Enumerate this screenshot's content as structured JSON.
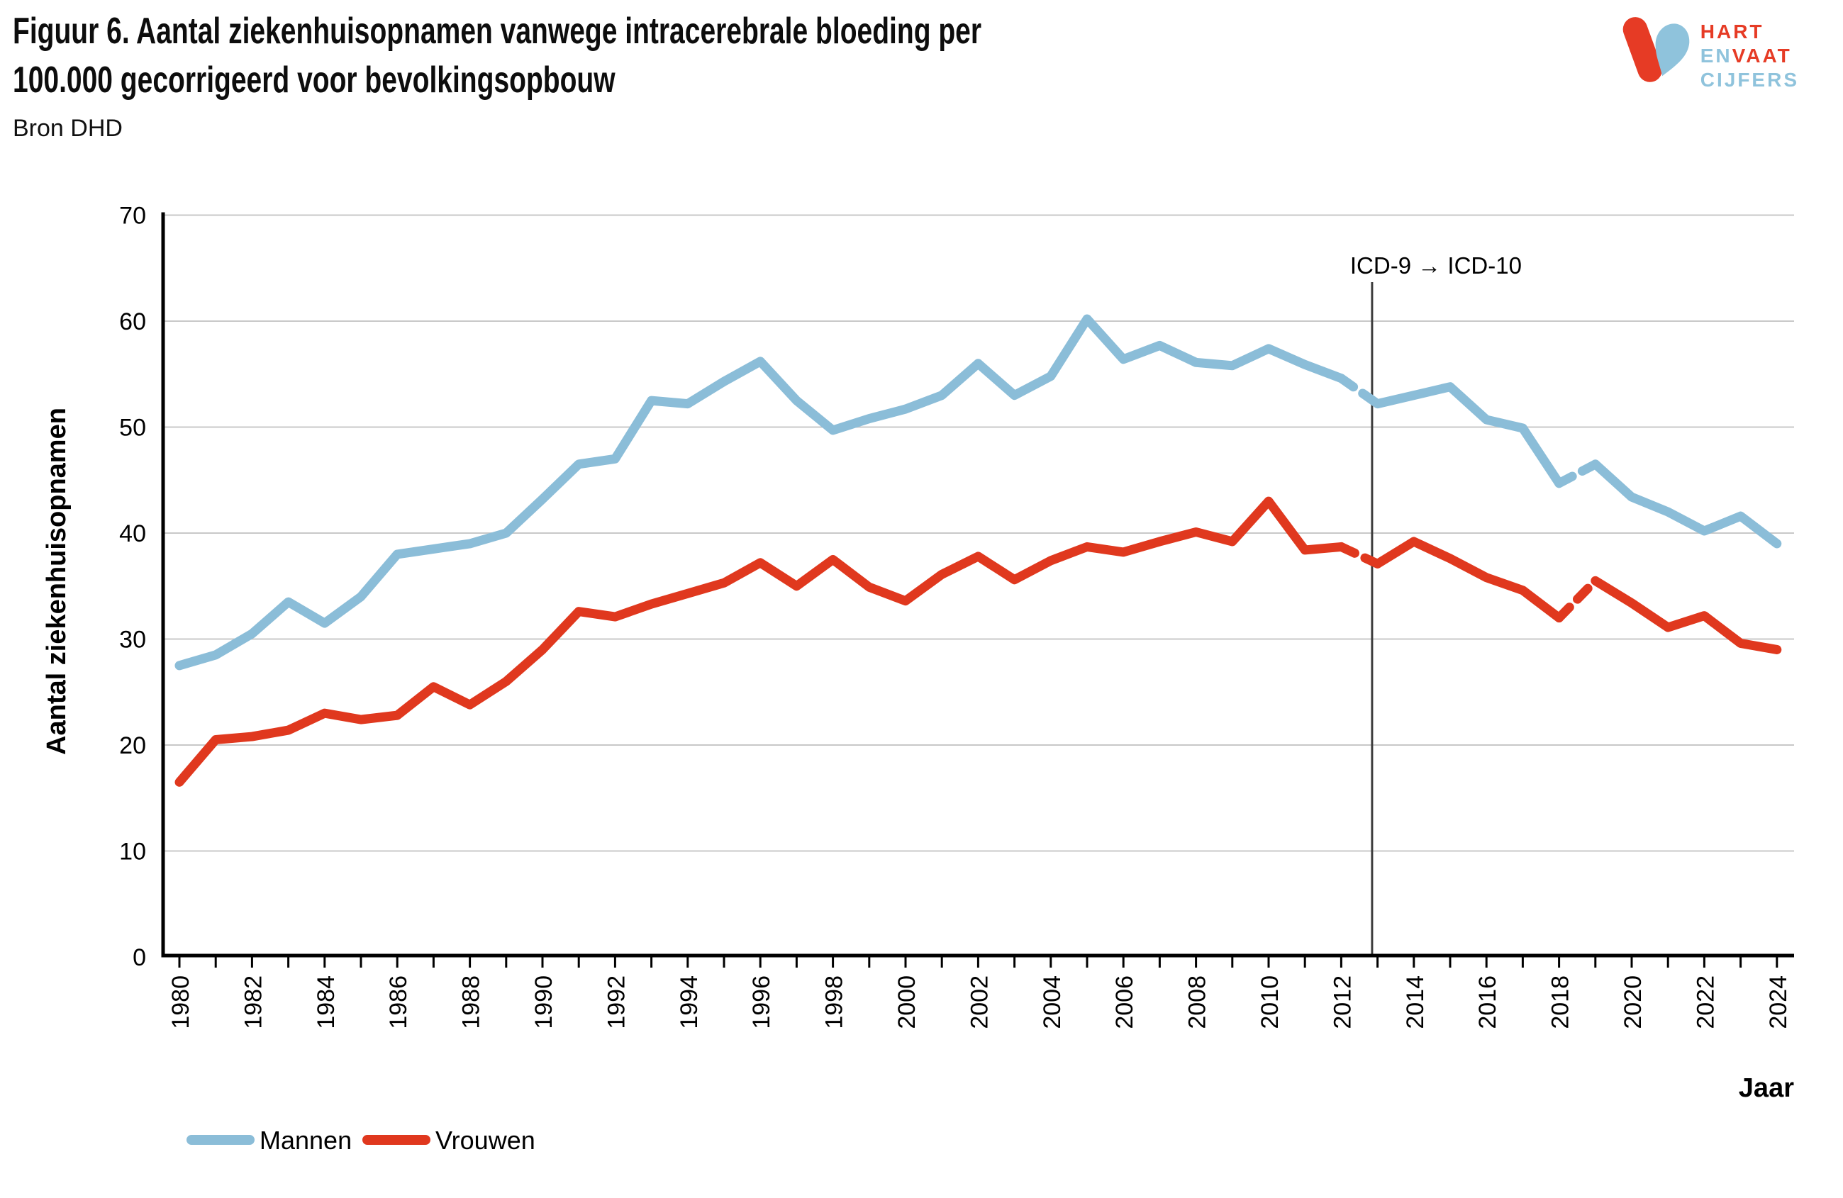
{
  "header": {
    "title": "Figuur 6. Aantal ziekenhuisopnamen vanwege intracerebrale bloeding per\n100.000 gecorrigeerd voor bevolkingsopbouw",
    "source": "Bron DHD"
  },
  "logo": {
    "word1": "HART",
    "word2a": "EN",
    "word2b": "VAAT",
    "word3": "CIJFERS",
    "red": "#e63b25",
    "blue": "#8fc3dc"
  },
  "chart_data": {
    "type": "line",
    "title": "Figuur 6. Aantal ziekenhuisopnamen vanwege intracerebrale bloeding per 100.000 gecorrigeerd voor bevolkingsopbouw",
    "xlabel": "Jaar",
    "ylabel": "Aantal ziekenhuisopnamen",
    "ylim": [
      0,
      70
    ],
    "yticks": [
      0,
      10,
      20,
      30,
      40,
      50,
      60,
      70
    ],
    "xtick_step": 2,
    "grid": true,
    "legend_position": "bottom-left",
    "grid_color": "#c8c8c8",
    "axis_color": "#000000",
    "annotation": {
      "label": "ICD-9 → ICD-10",
      "x": 2012.85,
      "line_color": "#3d3d3d"
    },
    "dashed_segments": [
      [
        2012,
        2013
      ],
      [
        2018,
        2019
      ]
    ],
    "x": [
      1980,
      1981,
      1982,
      1983,
      1984,
      1985,
      1986,
      1987,
      1988,
      1989,
      1990,
      1991,
      1992,
      1993,
      1994,
      1995,
      1996,
      1997,
      1998,
      1999,
      2000,
      2001,
      2002,
      2003,
      2004,
      2005,
      2006,
      2007,
      2008,
      2009,
      2010,
      2011,
      2012,
      2013,
      2014,
      2015,
      2016,
      2017,
      2018,
      2019,
      2020,
      2021,
      2022,
      2023,
      2024
    ],
    "series": [
      {
        "name": "Mannen",
        "color": "#8bbdd8",
        "values": [
          27.5,
          28.5,
          30.5,
          33.5,
          31.5,
          34.0,
          38.0,
          38.5,
          39.0,
          40.0,
          43.2,
          46.5,
          47.0,
          52.5,
          52.2,
          54.3,
          56.2,
          52.5,
          49.7,
          50.8,
          51.7,
          53.0,
          56.0,
          53.0,
          54.8,
          60.2,
          56.4,
          57.7,
          56.1,
          55.8,
          57.4,
          55.9,
          54.6,
          52.2,
          53.0,
          53.8,
          50.7,
          49.9,
          44.7,
          46.5,
          43.4,
          42.0,
          40.2,
          41.6,
          39.0
        ]
      },
      {
        "name": "Vrouwen",
        "color": "#e0381e",
        "values": [
          16.5,
          20.5,
          20.8,
          21.4,
          23.0,
          22.4,
          22.8,
          25.5,
          23.8,
          26.0,
          29.0,
          32.6,
          32.1,
          33.3,
          34.3,
          35.3,
          37.2,
          35.0,
          37.5,
          34.9,
          33.6,
          36.1,
          37.8,
          35.6,
          37.4,
          38.7,
          38.2,
          39.2,
          40.1,
          39.2,
          43.0,
          38.4,
          38.7,
          37.1,
          39.2,
          37.6,
          35.8,
          34.6,
          32.0,
          35.5,
          33.4,
          31.1,
          32.2,
          29.6,
          29.0
        ]
      }
    ]
  }
}
